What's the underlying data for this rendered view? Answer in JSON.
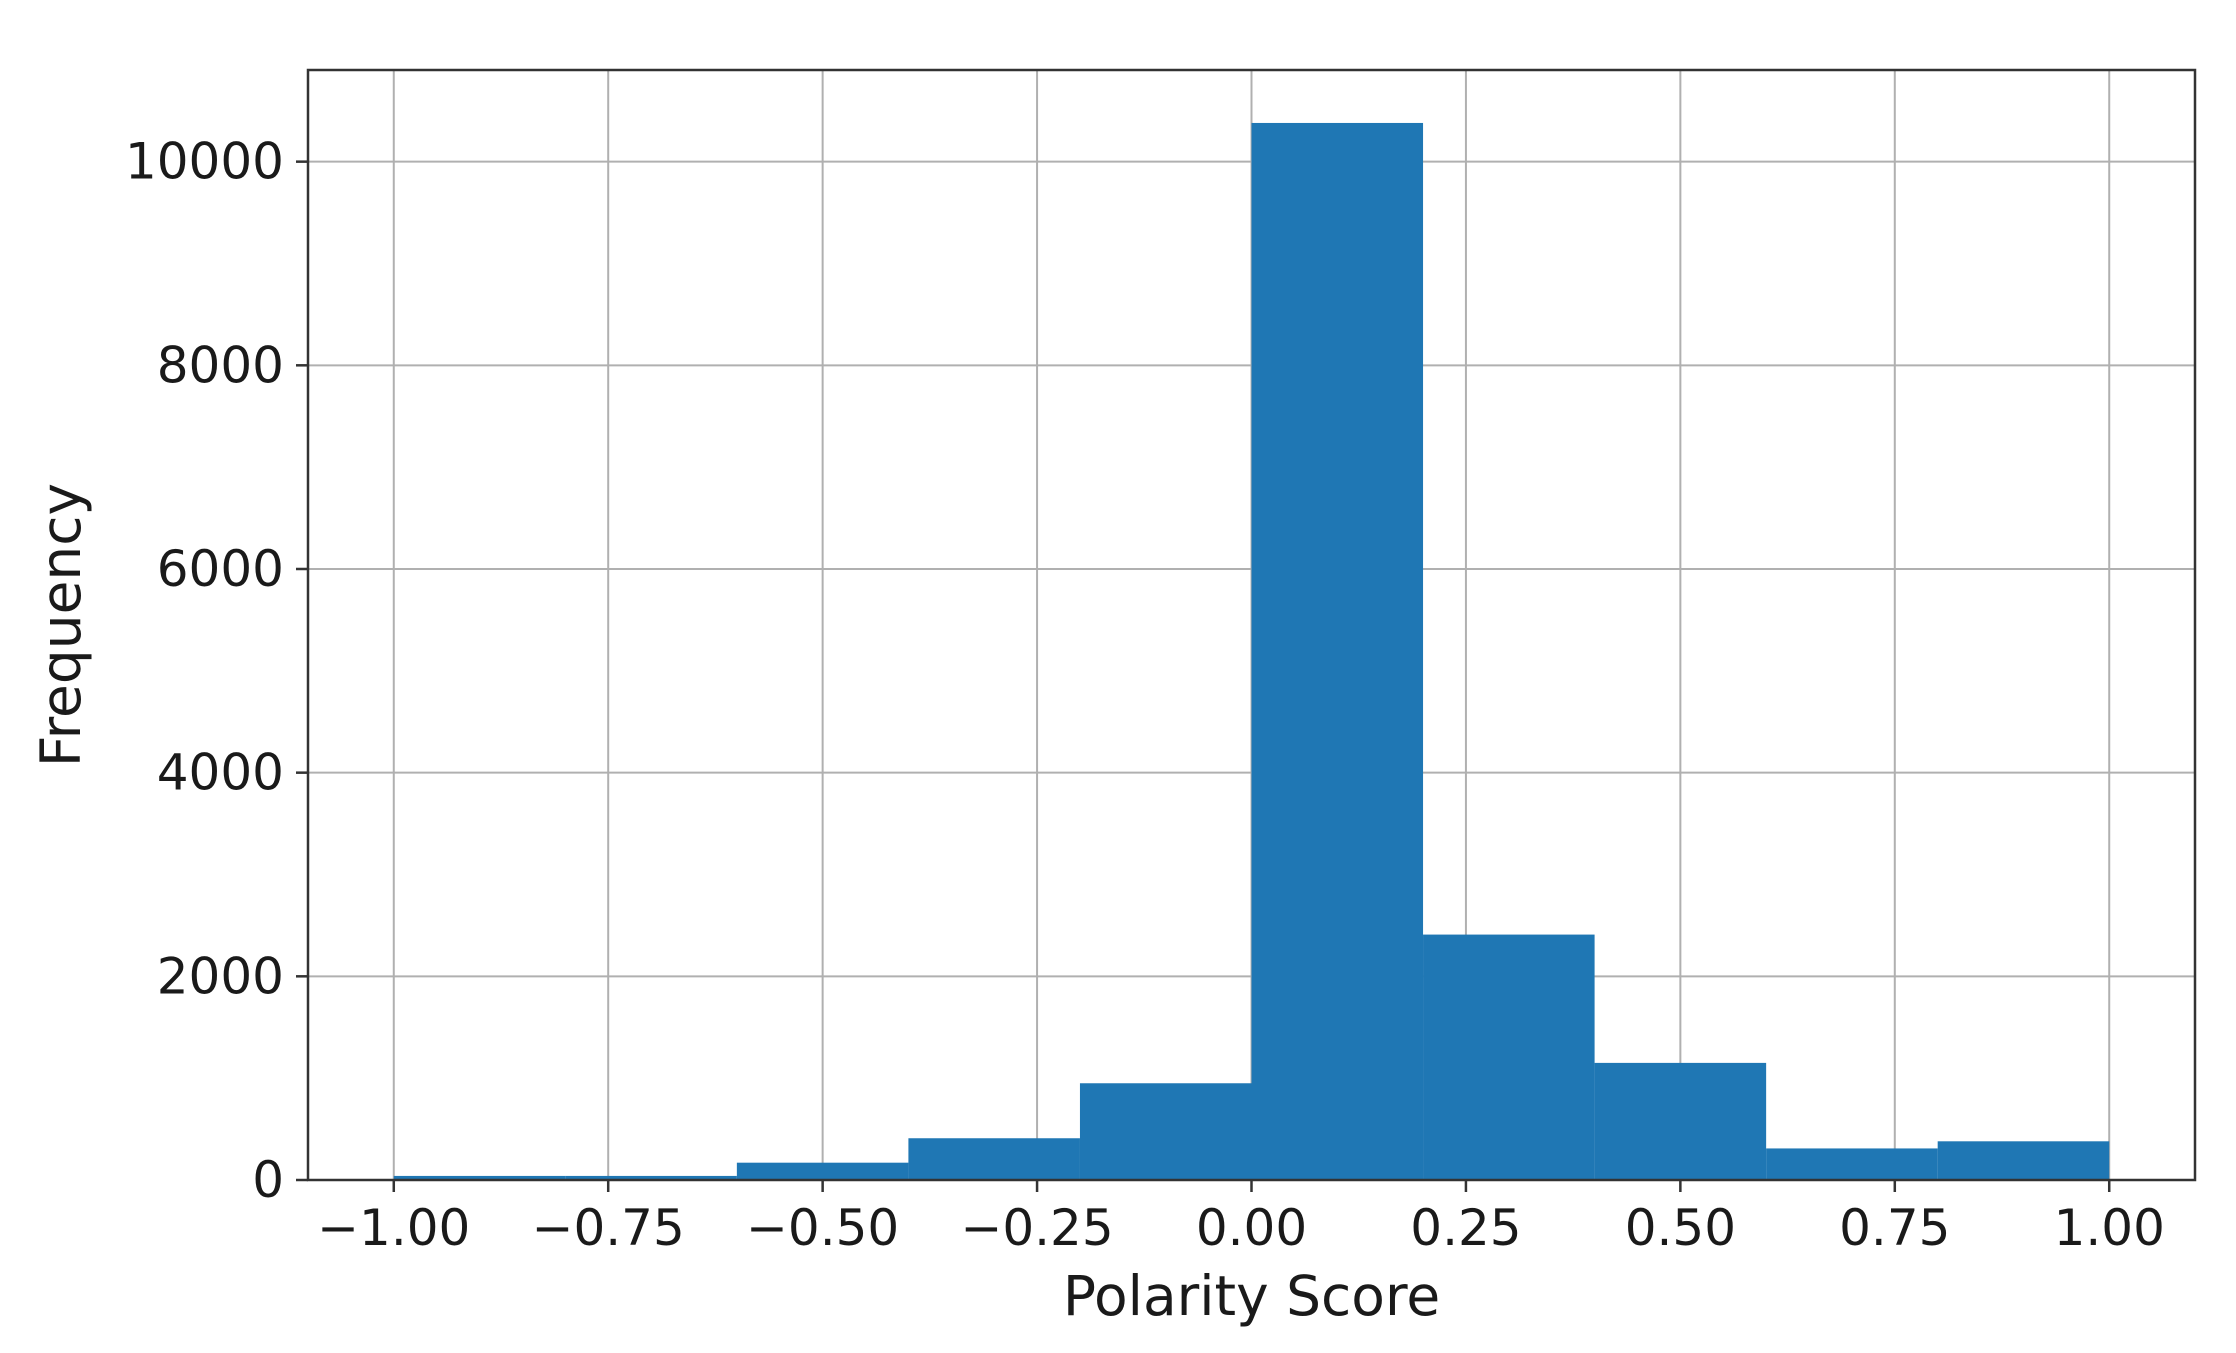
{
  "chart_data": {
    "type": "bar",
    "subtype": "histogram",
    "title": "",
    "xlabel": "Polarity Score",
    "ylabel": "Frequency",
    "bin_edges": [
      -1.0,
      -0.8,
      -0.6,
      -0.4,
      -0.2,
      0.0,
      0.2,
      0.4,
      0.6,
      0.8,
      1.0
    ],
    "values": [
      40,
      40,
      170,
      410,
      950,
      10380,
      2410,
      1150,
      310,
      380
    ],
    "xlim": [
      -1.1,
      1.1
    ],
    "ylim": [
      0,
      10900
    ],
    "xticks": [
      -1.0,
      -0.75,
      -0.5,
      -0.25,
      0.0,
      0.25,
      0.5,
      0.75,
      1.0
    ],
    "xtick_labels": [
      "−1.00",
      "−0.75",
      "−0.50",
      "−0.25",
      "0.00",
      "0.25",
      "0.50",
      "0.75",
      "1.00"
    ],
    "yticks": [
      0,
      2000,
      4000,
      6000,
      8000,
      10000
    ],
    "ytick_labels": [
      "0",
      "2000",
      "4000",
      "6000",
      "8000",
      "10000"
    ],
    "grid": true,
    "legend": false,
    "colors": {
      "bar": "#1f77b4",
      "grid": "#b0b0b0",
      "axes": "#333333"
    }
  }
}
